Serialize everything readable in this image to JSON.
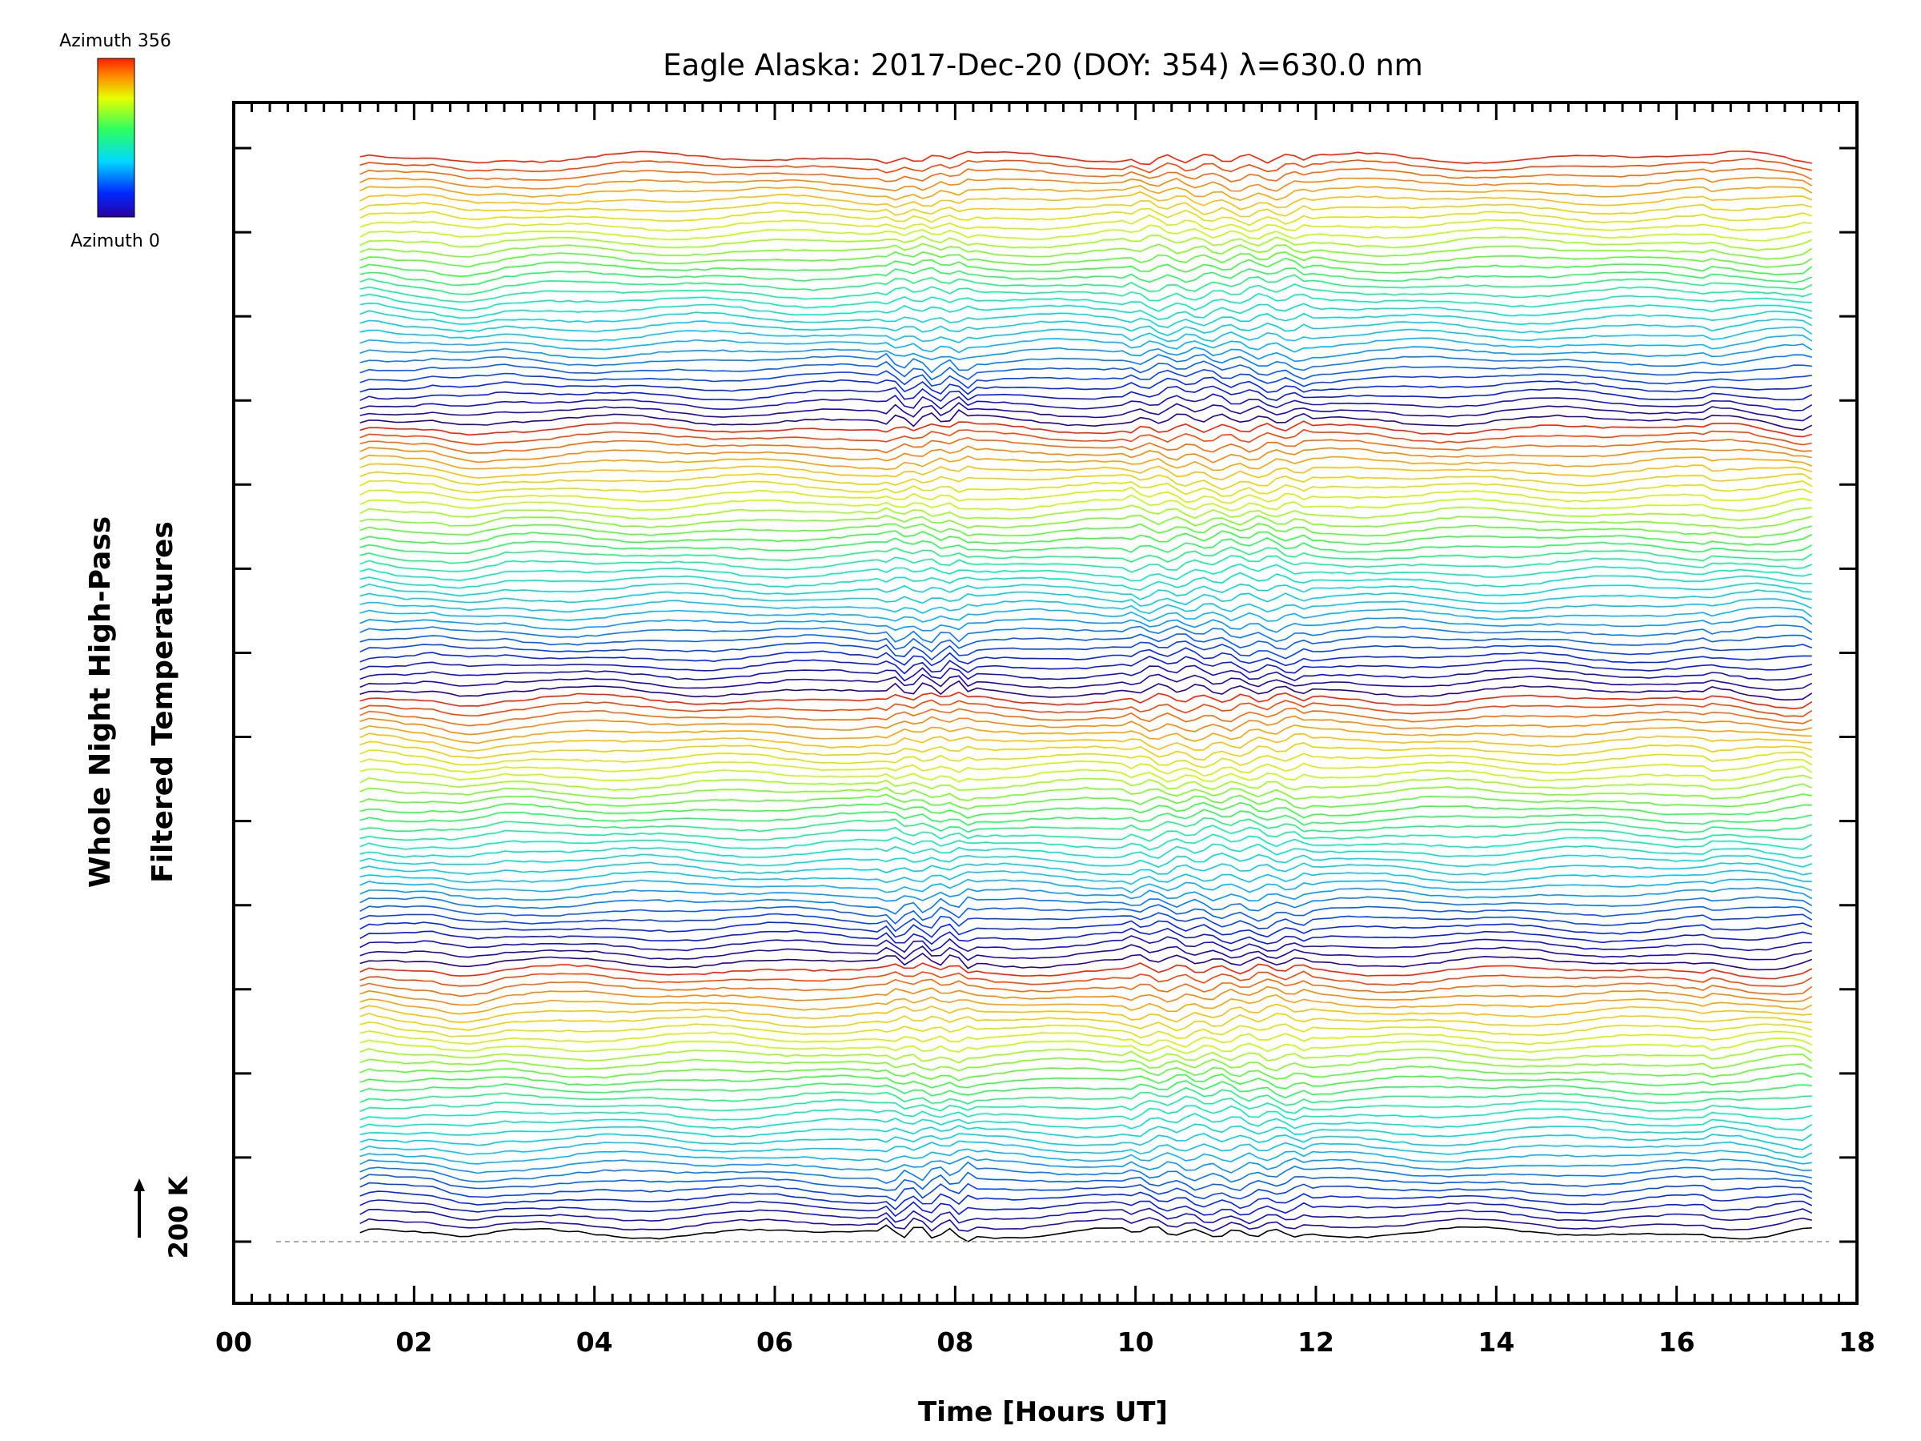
{
  "chart_data": {
    "type": "line",
    "title": "Eagle Alaska: 2017-Dec-20 (DOY: 354) λ=630.0 nm",
    "xlabel": "Time [Hours UT]",
    "ylabel_lines": [
      "Whole Night High-Pass",
      "Filtered Temperatures"
    ],
    "xlim": [
      0,
      18
    ],
    "x_ticks": [
      "00",
      "02",
      "04",
      "06",
      "08",
      "10",
      "12",
      "14",
      "16",
      "18"
    ],
    "y_scale_label": "200 K",
    "colorbar": {
      "top_label": "Azimuth 356",
      "bottom_label": "Azimuth 0",
      "colormap": "rainbow"
    },
    "series_count": 128,
    "x_start": 1.4,
    "x_end": 17.5,
    "azimuth_range": [
      0,
      356
    ],
    "grid": false,
    "legend": "colorbar top-left",
    "baseline": "dashed gray at 200 K reference"
  }
}
